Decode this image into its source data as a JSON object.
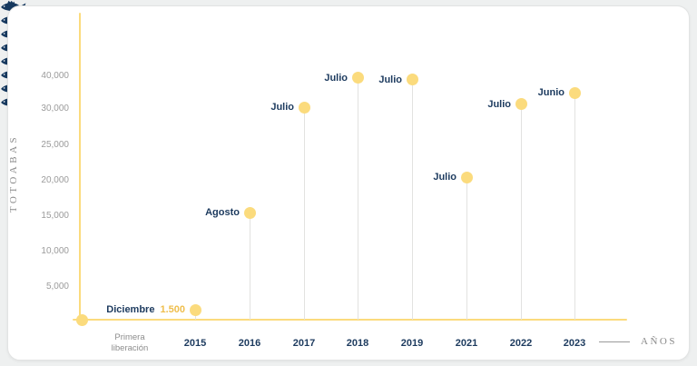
{
  "chart_data": {
    "type": "lollipop",
    "ylabel": "TOTOABAS",
    "xlabel": "AÑOS",
    "y_ticks": [
      5000,
      10000,
      15000,
      20000,
      25000,
      30000,
      40000
    ],
    "y_tick_labels": [
      "5,000",
      "10,000",
      "15,000",
      "20,000",
      "25,000",
      "30,000",
      "40,000"
    ],
    "ylim": [
      0,
      42000
    ],
    "grid": false,
    "origin": {
      "label_line1": "Primera",
      "label_line2": "liberación"
    },
    "points": [
      {
        "year": "2015",
        "month": "Diciembre",
        "value": 1500,
        "value_label": "1.500"
      },
      {
        "year": "2016",
        "month": "Agosto",
        "value": 15500,
        "value_label": ""
      },
      {
        "year": "2017",
        "month": "Julio",
        "value": 30500,
        "value_label": ""
      },
      {
        "year": "2018",
        "month": "Julio",
        "value": 39500,
        "value_label": ""
      },
      {
        "year": "2019",
        "month": "Julio",
        "value": 39000,
        "value_label": ""
      },
      {
        "year": "2021",
        "month": "Julio",
        "value": 20500,
        "value_label": ""
      },
      {
        "year": "2022",
        "month": "Julio",
        "value": 31500,
        "value_label": ""
      },
      {
        "year": "2023",
        "month": "Junio",
        "value": 35000,
        "value_label": ""
      }
    ],
    "colors": {
      "dot": "#fbdb7d",
      "axis": "#fbdb7d",
      "month_text": "#1c3a5e",
      "value_text": "#efbe4c",
      "tick_text": "#9b9b9b",
      "fish": "#16395f",
      "stem": "#e2e2e0"
    }
  }
}
